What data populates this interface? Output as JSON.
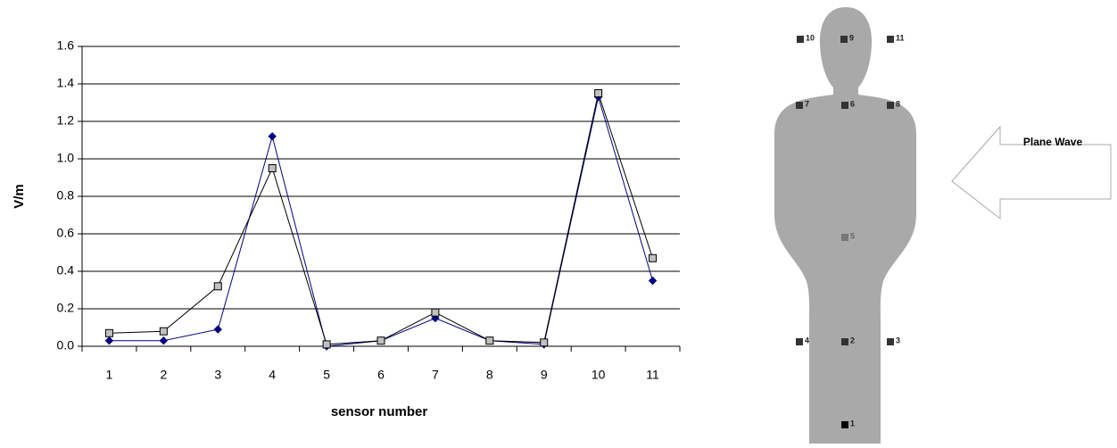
{
  "chart_data": {
    "type": "line",
    "categories": [
      "1",
      "2",
      "3",
      "4",
      "5",
      "6",
      "7",
      "8",
      "9",
      "10",
      "11"
    ],
    "series": [
      {
        "color": "#000080",
        "marker": "diamond",
        "marker_fill": "#000080",
        "values": [
          0.03,
          0.03,
          0.09,
          1.12,
          0.0,
          0.03,
          0.15,
          0.03,
          0.01,
          1.33,
          0.35
        ]
      },
      {
        "color": "#000000",
        "marker": "square",
        "marker_fill": "#c0c0c0",
        "values": [
          0.07,
          0.08,
          0.32,
          0.95,
          0.01,
          0.03,
          0.18,
          0.03,
          0.02,
          1.35,
          0.47
        ]
      }
    ],
    "xlabel": "sensor number",
    "ylabel": "V/m",
    "ylim": [
      0,
      1.6
    ],
    "yticks": [
      {
        "value": 0,
        "label": "0.0"
      },
      0.2,
      0.4,
      0.6,
      0.8,
      {
        "value": 1,
        "label": "1.0"
      },
      1.2,
      1.4,
      1.6
    ],
    "grid": true
  },
  "diagram": {
    "sensors": [
      "1",
      "2",
      "3",
      "4",
      "5",
      "6",
      "7",
      "8",
      "9",
      "10",
      "11"
    ],
    "arrow_label": "Plane Wave"
  }
}
